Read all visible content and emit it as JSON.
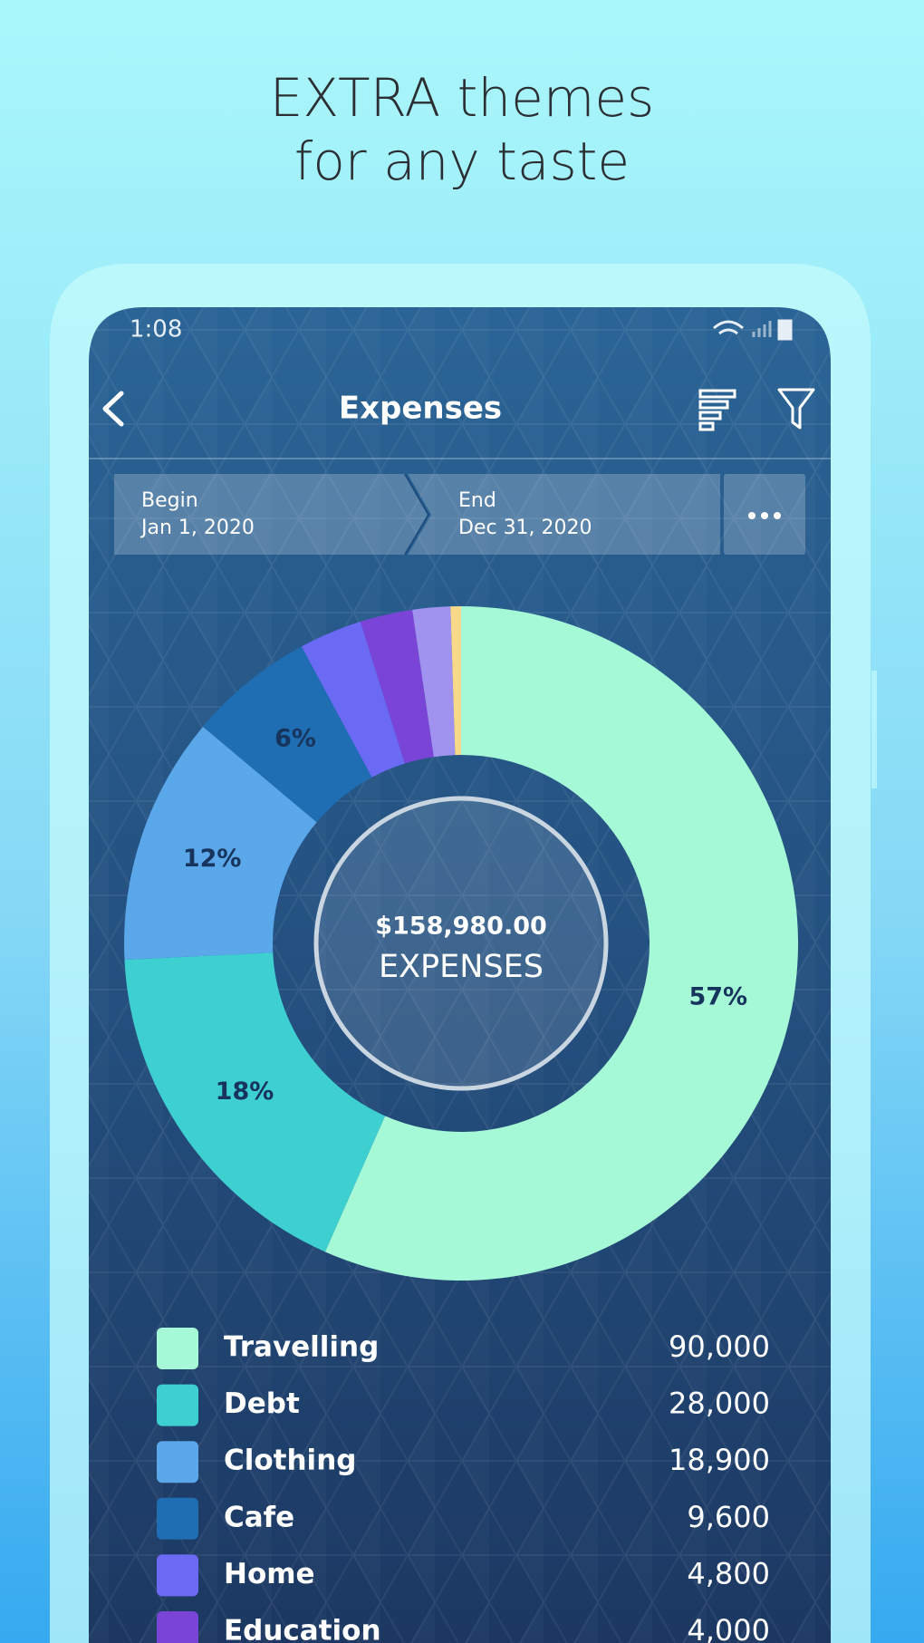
{
  "header": {
    "title_lines": [
      "EXTRA themes",
      "for any taste"
    ]
  },
  "status_bar": {
    "time": "1:08"
  },
  "app_bar": {
    "title": "Expenses"
  },
  "date_range": {
    "begin_label": "Begin",
    "begin": "Jan 1, 2020",
    "end_label": "End",
    "end": "Dec 31, 2020"
  },
  "chart_data": {
    "type": "donut",
    "categories": [
      "Travelling",
      "Debt",
      "Clothing",
      "Cafe",
      "Home",
      "Education",
      null,
      null
    ],
    "values": [
      90000,
      28000,
      18900,
      9600,
      4800,
      4000,
      2880,
      800
    ],
    "value_labels": [
      "90,000",
      "28,000",
      "18,900",
      "9,600",
      "4,800",
      "4,000",
      null,
      null
    ],
    "slice_labels": [
      "57%",
      "18%",
      "12%",
      "6%",
      null,
      null,
      null,
      null
    ],
    "colors": [
      "#a6f9d6",
      "#3ecfd1",
      "#5aa7ea",
      "#1f6db3",
      "#6a6af5",
      "#7a45d6",
      "#a093f0",
      "#f8d98a"
    ],
    "center_value": "$158,980.00",
    "center_label": "EXPENSES"
  }
}
